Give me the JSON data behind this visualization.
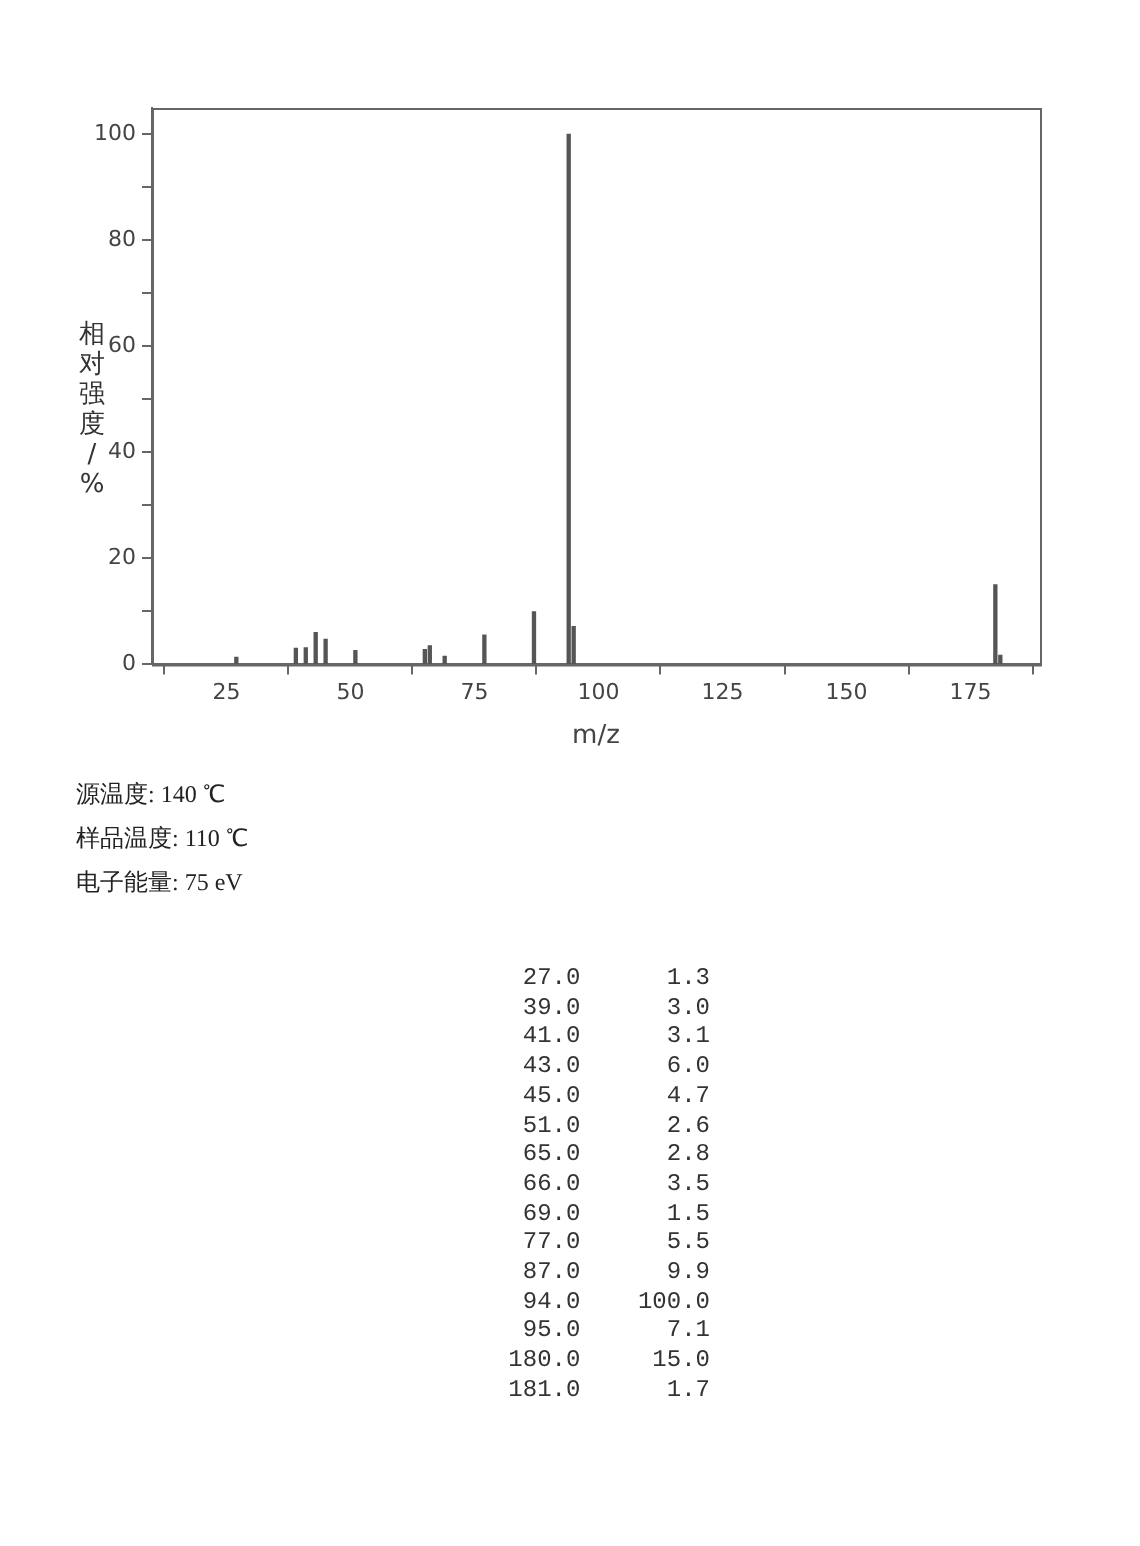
{
  "chart_data": {
    "type": "bar",
    "xlabel": "m/z",
    "ylabel": "相对强度/%",
    "x": [
      27,
      39,
      41,
      43,
      45,
      51,
      65,
      66,
      69,
      77,
      87,
      94,
      95,
      180,
      181
    ],
    "values": [
      1.3,
      3.0,
      3.1,
      6.0,
      4.7,
      2.6,
      2.8,
      3.5,
      1.5,
      5.5,
      9.9,
      100.0,
      7.1,
      15.0,
      1.7
    ],
    "color": "#555555",
    "xlim": [
      10,
      189
    ],
    "xticks": [
      25,
      50,
      75,
      100,
      125,
      150,
      175
    ],
    "ylim": [
      0,
      105
    ],
    "yticks": [
      0,
      {
        "value": 10,
        "label": null
      },
      20,
      {
        "value": 30,
        "label": null
      },
      40,
      {
        "value": 50,
        "label": null
      },
      60,
      {
        "value": 70,
        "label": null
      },
      80,
      {
        "value": 90,
        "label": null
      },
      100
    ],
    "grid": false,
    "legend": false,
    "annotations": [
      "源温度: 140 ℃",
      "样品温度: 110 ℃",
      "电子能量: 75 eV",
      "27.0      1.3",
      "39.0      3.0",
      "41.0      3.1",
      "43.0      6.0",
      "45.0      4.7",
      "51.0      2.6",
      "65.0      2.8",
      "66.0      3.5",
      "69.0      1.5",
      "77.0      5.5",
      "87.0      9.9",
      "94.0    100.0",
      "95.0      7.1",
      "180.0     15.0",
      "181.0      1.7"
    ]
  }
}
